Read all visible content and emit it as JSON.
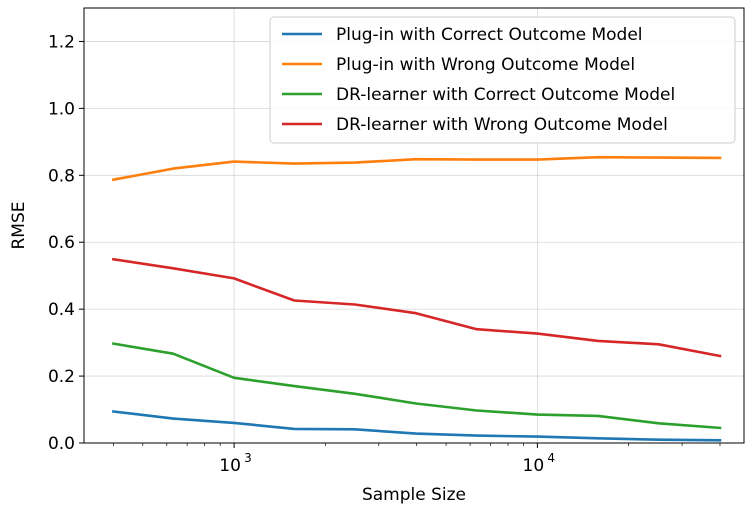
{
  "chart_data": {
    "type": "line",
    "xlabel": "Sample Size",
    "ylabel": "RMSE",
    "x_scale": "log",
    "xlim": [
      320,
      48000
    ],
    "ylim": [
      0,
      1.3
    ],
    "grid": true,
    "legend_position": "top-right",
    "x_ticks": [
      {
        "value": 1000,
        "base": "10",
        "exp": "3"
      },
      {
        "value": 10000,
        "base": "10",
        "exp": "4"
      }
    ],
    "y_ticks": [
      {
        "value": 0.0,
        "label": "0.0"
      },
      {
        "value": 0.2,
        "label": "0.2"
      },
      {
        "value": 0.4,
        "label": "0.4"
      },
      {
        "value": 0.6,
        "label": "0.6"
      },
      {
        "value": 0.8,
        "label": "0.8"
      },
      {
        "value": 1.0,
        "label": "1.0"
      },
      {
        "value": 1.2,
        "label": "1.2"
      }
    ],
    "x": [
      400,
      630,
      1000,
      1580,
      2500,
      3980,
      6310,
      10000,
      15850,
      25120,
      40000
    ],
    "series": [
      {
        "name": "Plug-in with Correct Outcome Model",
        "color": "#1f77b4",
        "values": [
          0.094,
          0.073,
          0.06,
          0.042,
          0.041,
          0.028,
          0.022,
          0.019,
          0.014,
          0.01,
          0.008
        ]
      },
      {
        "name": "Plug-in with Wrong Outcome Model",
        "color": "#ff7f0e",
        "values": [
          0.787,
          0.82,
          0.841,
          0.835,
          0.838,
          0.848,
          0.847,
          0.847,
          0.854,
          0.853,
          0.852
        ]
      },
      {
        "name": "DR-learner with Correct Outcome Model",
        "color": "#2ca02c",
        "values": [
          0.297,
          0.267,
          0.195,
          0.17,
          0.147,
          0.118,
          0.097,
          0.085,
          0.081,
          0.059,
          0.045
        ]
      },
      {
        "name": "DR-learner with Wrong Outcome Model",
        "color": "#d62728",
        "values": [
          0.549,
          0.522,
          0.492,
          0.426,
          0.414,
          0.388,
          0.34,
          0.327,
          0.305,
          0.295,
          0.26
        ]
      }
    ]
  }
}
